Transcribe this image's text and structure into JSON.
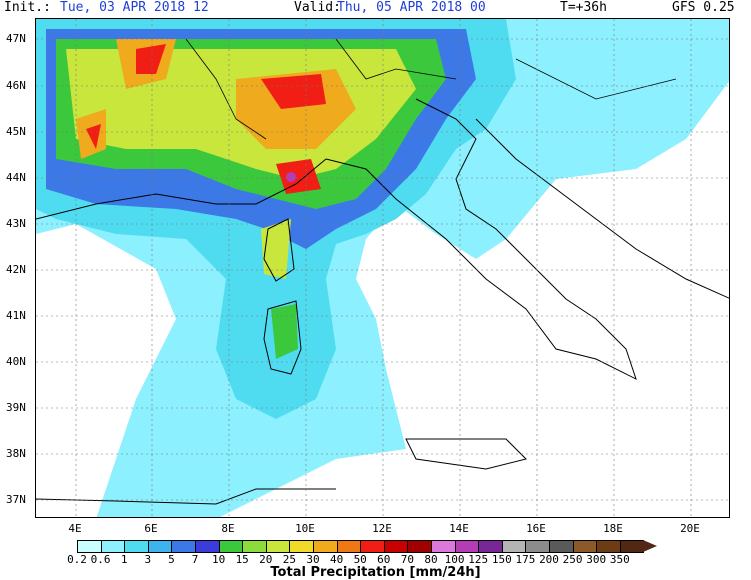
{
  "header": {
    "init_label": "Init.:",
    "init_value": "Tue, 03 APR 2018  12",
    "valid_label": "Valid:",
    "valid_value": "Thu, 05 APR 2018  00",
    "lead_time": "T=+36h",
    "model": "GFS 0.25"
  },
  "axes": {
    "lat_labels": [
      "47N",
      "46N",
      "45N",
      "44N",
      "43N",
      "42N",
      "41N",
      "40N",
      "39N",
      "38N",
      "37N"
    ],
    "lon_labels": [
      "4E",
      "6E",
      "8E",
      "10E",
      "12E",
      "14E",
      "16E",
      "18E",
      "20E"
    ]
  },
  "colorbar": {
    "title": "Total Precipitation [mm/24h]",
    "levels": [
      "0.2",
      "0.6",
      "1",
      "3",
      "5",
      "7",
      "10",
      "15",
      "20",
      "25",
      "30",
      "40",
      "50",
      "60",
      "70",
      "80",
      "100",
      "125",
      "150",
      "175",
      "200",
      "250",
      "300",
      "350"
    ],
    "colors": [
      "#c8ffff",
      "#8cf0ff",
      "#50dcf0",
      "#3cb4f0",
      "#3c78e6",
      "#3c3cdc",
      "#3cc83c",
      "#8cdc3c",
      "#c8e63c",
      "#f0dc28",
      "#f0aa1e",
      "#f07814",
      "#f01e14",
      "#c80000",
      "#a00000",
      "#dc78dc",
      "#b43cb4",
      "#782896",
      "#b4b4b4",
      "#8c8c8c",
      "#5a5a5a",
      "#8c5a28",
      "#6e3c14",
      "#502814"
    ]
  }
}
